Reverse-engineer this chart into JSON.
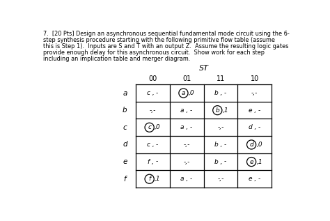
{
  "title_lines": [
    "7.  [20 Pts] Design an asynchronous sequential fundamental mode circuit using the 6-",
    "step synthesis procedure starting with the following primitive flow table (assume",
    "this is Step 1).  Inputs are S and T with an output Z.  Assume the resulting logic gates",
    "provide enough delay for this asynchronous circuit.  Show work for each step",
    "including an implication table and merger diagram."
  ],
  "st_label": "ST",
  "col_headers": [
    "00",
    "01",
    "11",
    "10"
  ],
  "row_headers": [
    "a",
    "b",
    "c",
    "d",
    "e",
    "f"
  ],
  "cells": [
    [
      "c,-",
      "a,0",
      "b,-",
      "-,-"
    ],
    [
      "-,-",
      "a,-",
      "b,1",
      "e,-"
    ],
    [
      "c,0",
      "a,-",
      "-,-",
      "d,-"
    ],
    [
      "c,-",
      "-,-",
      "b,-",
      "d,0"
    ],
    [
      "f,-",
      "-,-",
      "b,-",
      "e,1"
    ],
    [
      "f,1",
      "a,-",
      "-,-",
      "e,-"
    ]
  ],
  "circled": [
    [
      0,
      1
    ],
    [
      1,
      2
    ],
    [
      2,
      0
    ],
    [
      3,
      3
    ],
    [
      4,
      3
    ],
    [
      5,
      0
    ]
  ],
  "bg_color": "#ffffff",
  "text_color": "#000000"
}
